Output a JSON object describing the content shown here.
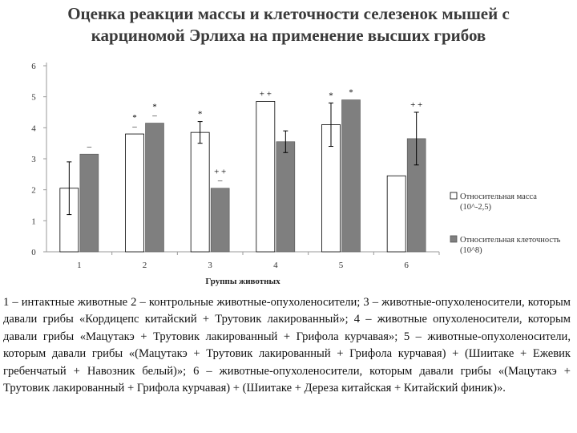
{
  "title_lines": [
    "Оценка реакции массы и клеточности селезенок мышей с",
    "карциномой Эрлиха на применение высших грибов"
  ],
  "caption": "1 – интактные животные 2 – контрольные животные-опухоленосители; 3 – животные-опухоленосители, которым давали грибы «Кордицепс китайский + Трутовик лакированный»; 4 – животные опухоленосители, которым давали грибы «Мацутакэ + Трутовик лакированный + Грифола курчавая»; 5 – животные-опухоленосители, которым давали грибы «(Мацутакэ + Трутовик лакированный + Грифола курчавая) + (Шиитаке + Ежевик гребенчатый + Навозник белый)»; 6 – животные-опухоленосители, которым давали грибы «(Мацутакэ + Трутовик лакированный + Грифола курчавая) + (Шиитаке + Дереза китайская + Китайский финик)».",
  "chart_data": {
    "type": "bar",
    "categories": [
      "1",
      "2",
      "3",
      "4",
      "5",
      "6"
    ],
    "xlabel": "Группы животных",
    "ylabel": "",
    "ylim": [
      0,
      6
    ],
    "yticks": [
      "0",
      "1",
      "2",
      "3",
      "4",
      "5",
      "6"
    ],
    "grid": false,
    "legend_position": "right",
    "series": [
      {
        "name": "Относительная масса (10^-2,5)",
        "color": "#ffffff",
        "values": [
          2.05,
          3.8,
          3.85,
          4.85,
          4.1,
          2.45
        ],
        "error": [
          0.85,
          null,
          0.35,
          null,
          0.7,
          null
        ],
        "marks": [
          "",
          "*\n–",
          "*",
          "+ +",
          "*",
          ""
        ]
      },
      {
        "name": "Относительная клеточность (10^8)",
        "color": "#7f7f7f",
        "values": [
          3.15,
          4.15,
          2.05,
          3.55,
          4.9,
          3.65
        ],
        "error": [
          null,
          null,
          null,
          0.35,
          null,
          0.85
        ],
        "marks": [
          "–",
          "*\n–",
          "+ +\n–",
          "",
          "*",
          "+ +"
        ]
      }
    ]
  }
}
